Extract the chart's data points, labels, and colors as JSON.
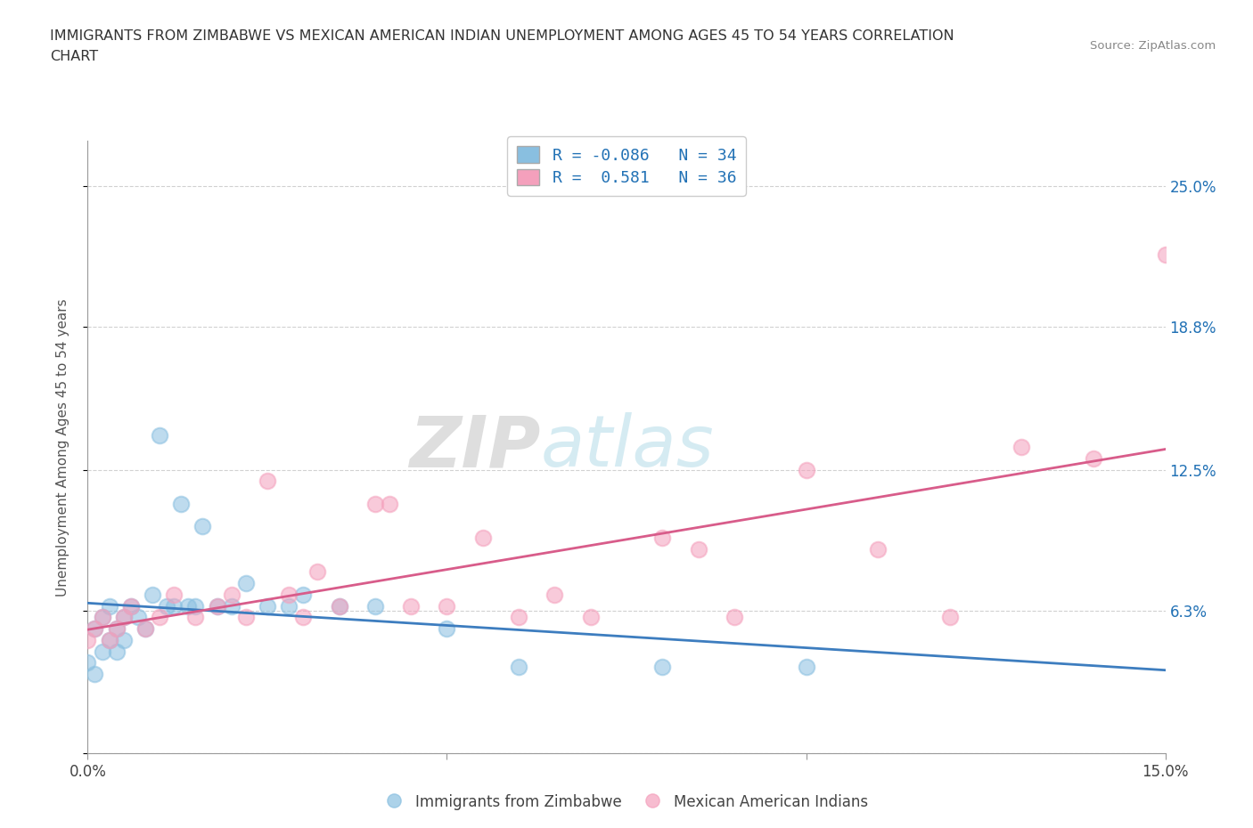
{
  "title_line1": "IMMIGRANTS FROM ZIMBABWE VS MEXICAN AMERICAN INDIAN UNEMPLOYMENT AMONG AGES 45 TO 54 YEARS CORRELATION",
  "title_line2": "CHART",
  "source": "Source: ZipAtlas.com",
  "ylabel": "Unemployment Among Ages 45 to 54 years",
  "xlim": [
    0.0,
    0.15
  ],
  "ylim": [
    0.0,
    0.27
  ],
  "xticks": [
    0.0,
    0.05,
    0.1,
    0.15
  ],
  "xticklabels": [
    "0.0%",
    "",
    "",
    "15.0%"
  ],
  "ytick_positions": [
    0.0,
    0.063,
    0.125,
    0.188,
    0.25
  ],
  "ytick_labels": [
    "",
    "6.3%",
    "12.5%",
    "18.8%",
    "25.0%"
  ],
  "color_blue": "#89bfe0",
  "color_pink": "#f4a0bc",
  "color_blue_line": "#3d7dbf",
  "color_pink_line": "#d85c8a",
  "color_blue_text": "#2171b5",
  "R_blue": -0.086,
  "N_blue": 34,
  "R_pink": 0.581,
  "N_pink": 36,
  "blue_scatter_x": [
    0.0,
    0.001,
    0.001,
    0.002,
    0.002,
    0.003,
    0.003,
    0.004,
    0.004,
    0.005,
    0.005,
    0.006,
    0.007,
    0.008,
    0.009,
    0.01,
    0.011,
    0.012,
    0.013,
    0.014,
    0.015,
    0.016,
    0.018,
    0.02,
    0.022,
    0.025,
    0.028,
    0.03,
    0.035,
    0.04,
    0.05,
    0.06,
    0.08,
    0.1
  ],
  "blue_scatter_y": [
    0.04,
    0.035,
    0.055,
    0.045,
    0.06,
    0.05,
    0.065,
    0.055,
    0.045,
    0.06,
    0.05,
    0.065,
    0.06,
    0.055,
    0.07,
    0.14,
    0.065,
    0.065,
    0.11,
    0.065,
    0.065,
    0.1,
    0.065,
    0.065,
    0.075,
    0.065,
    0.065,
    0.07,
    0.065,
    0.065,
    0.055,
    0.038,
    0.038,
    0.038
  ],
  "pink_scatter_x": [
    0.0,
    0.001,
    0.002,
    0.003,
    0.004,
    0.005,
    0.006,
    0.008,
    0.01,
    0.012,
    0.015,
    0.018,
    0.02,
    0.022,
    0.025,
    0.028,
    0.03,
    0.032,
    0.035,
    0.04,
    0.042,
    0.045,
    0.05,
    0.055,
    0.06,
    0.065,
    0.07,
    0.08,
    0.085,
    0.09,
    0.1,
    0.11,
    0.12,
    0.13,
    0.14,
    0.15
  ],
  "pink_scatter_y": [
    0.05,
    0.055,
    0.06,
    0.05,
    0.055,
    0.06,
    0.065,
    0.055,
    0.06,
    0.07,
    0.06,
    0.065,
    0.07,
    0.06,
    0.12,
    0.07,
    0.06,
    0.08,
    0.065,
    0.11,
    0.11,
    0.065,
    0.065,
    0.095,
    0.06,
    0.07,
    0.06,
    0.095,
    0.09,
    0.06,
    0.125,
    0.09,
    0.06,
    0.135,
    0.13,
    0.22
  ]
}
